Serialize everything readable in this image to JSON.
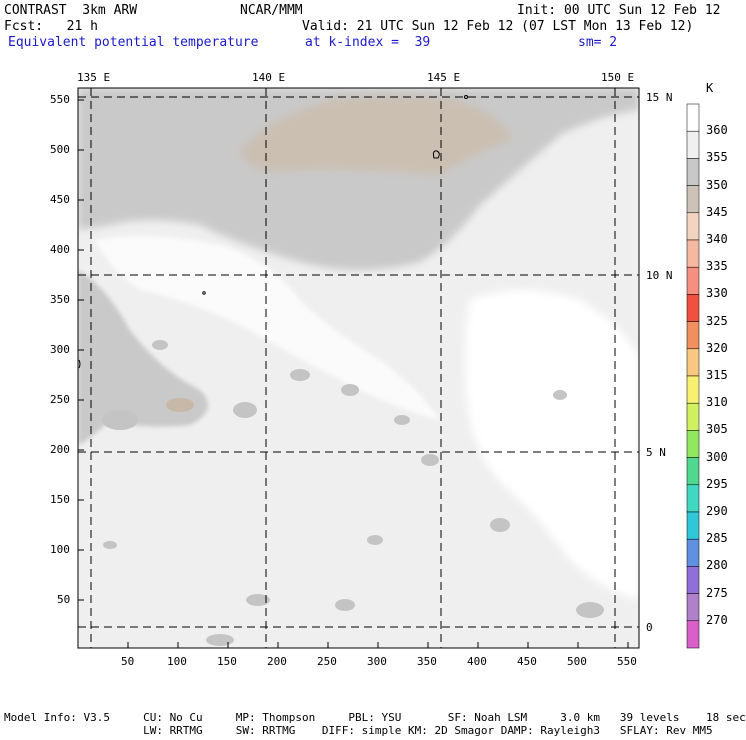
{
  "header": {
    "model": "CONTRAST  3km ARW",
    "org": "NCAR/MMM",
    "init": "Init: 00 UTC Sun 12 Feb 12",
    "fcst": "Fcst:   21 h",
    "valid": "Valid: 21 UTC Sun 12 Feb 12 (07 LST Mon 13 Feb 12)",
    "field": "Equivalent potential temperature",
    "level": "at k-index =  39",
    "smooth": "sm= 2"
  },
  "axes": {
    "lon_labels": [
      "135 E",
      "140 E",
      "145 E",
      "150 E"
    ],
    "lat_labels": [
      "15 N",
      "10 N",
      "5 N",
      "0"
    ],
    "x_ticks": [
      "50",
      "100",
      "150",
      "200",
      "250",
      "300",
      "350",
      "400",
      "450",
      "500",
      "550"
    ],
    "y_ticks": [
      "550",
      "500",
      "450",
      "400",
      "350",
      "300",
      "250",
      "200",
      "150",
      "100",
      "50"
    ]
  },
  "colorbar": {
    "unit": "K",
    "levels": [
      "360",
      "355",
      "350",
      "345",
      "340",
      "335",
      "330",
      "325",
      "320",
      "315",
      "310",
      "305",
      "300",
      "295",
      "290",
      "285",
      "280",
      "275",
      "270"
    ],
    "colors": [
      "#ffffff",
      "#f0f0f0",
      "#c8c8c8",
      "#cdc2b8",
      "#f2d4c0",
      "#f5b8a0",
      "#f59080",
      "#f05040",
      "#f09060",
      "#f8c880",
      "#f8f070",
      "#d0f060",
      "#90e860",
      "#50d890",
      "#40d8c0",
      "#30c8d8",
      "#6090e0",
      "#9070d8",
      "#b080c8",
      "#d860c8"
    ]
  },
  "footer": {
    "line1": "Model Info: V3.5     CU: No Cu     MP: Thompson     PBL: YSU       SF: Noah LSM     3.0 km   39 levels    18 sec",
    "line2": "                     LW: RRTMG     SW: RRTMG    DIFF: simple KM: 2D Smagor DAMP: Rayleigh3   SFLAY: Rev MM5"
  }
}
